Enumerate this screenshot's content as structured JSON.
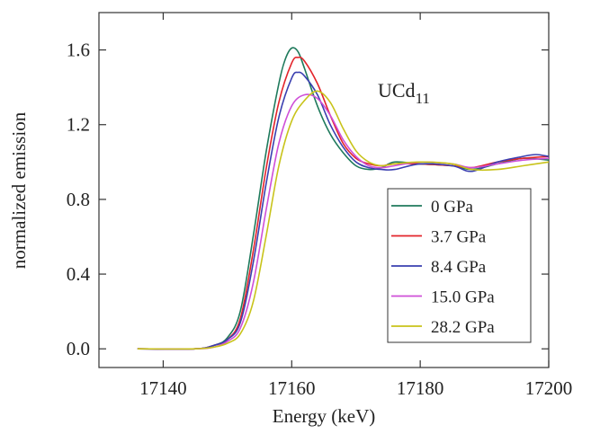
{
  "chart_data": {
    "type": "line",
    "title": "",
    "xlabel": "Energy (keV)",
    "ylabel": "normalized emission",
    "xlim": [
      17130,
      17200
    ],
    "ylim": [
      -0.1,
      1.8
    ],
    "xticks": [
      17140,
      17160,
      17180,
      17200
    ],
    "yticks": [
      0.0,
      0.4,
      0.8,
      1.2,
      1.6
    ],
    "xtick_labels": [
      "17140",
      "17160",
      "17180",
      "17200"
    ],
    "ytick_labels": [
      "0.0",
      "0.4",
      "0.8",
      "1.2",
      "1.6"
    ],
    "grid": false,
    "legend_position": "lower-right",
    "annotation": {
      "base": "UCd",
      "subscript": "11"
    },
    "series": [
      {
        "name": "0 GPa",
        "color": "#1f7a5c",
        "x": [
          17136,
          17145,
          17148,
          17150,
          17152,
          17154,
          17156,
          17158,
          17159,
          17160,
          17161,
          17162,
          17164,
          17166,
          17168,
          17170,
          17172,
          17174,
          17176,
          17180,
          17185,
          17188,
          17192,
          17196,
          17200
        ],
        "y": [
          0.0,
          0.0,
          0.02,
          0.06,
          0.2,
          0.6,
          1.05,
          1.42,
          1.55,
          1.61,
          1.59,
          1.5,
          1.3,
          1.15,
          1.05,
          0.98,
          0.96,
          0.97,
          1.0,
          0.99,
          0.98,
          0.96,
          0.99,
          1.02,
          1.01
        ]
      },
      {
        "name": "3.7 GPa",
        "color": "#e3242b",
        "x": [
          17136,
          17145,
          17148,
          17150,
          17152,
          17154,
          17156,
          17158,
          17160,
          17161,
          17162,
          17164,
          17166,
          17168,
          17170,
          17172,
          17174,
          17176,
          17180,
          17185,
          17188,
          17192,
          17196,
          17200
        ],
        "y": [
          0.0,
          0.0,
          0.02,
          0.05,
          0.16,
          0.52,
          0.96,
          1.32,
          1.53,
          1.56,
          1.54,
          1.42,
          1.25,
          1.1,
          1.02,
          0.99,
          0.98,
          0.99,
          0.99,
          0.98,
          0.97,
          1.0,
          1.02,
          1.03
        ]
      },
      {
        "name": "8.4 GPa",
        "color": "#3a3fb0",
        "x": [
          17136,
          17145,
          17148,
          17150,
          17152,
          17154,
          17156,
          17158,
          17160,
          17161,
          17162,
          17164,
          17166,
          17168,
          17170,
          17172,
          17174,
          17176,
          17180,
          17185,
          17188,
          17192,
          17196,
          17198,
          17200
        ],
        "y": [
          0.0,
          0.0,
          0.02,
          0.05,
          0.14,
          0.46,
          0.88,
          1.24,
          1.45,
          1.48,
          1.46,
          1.36,
          1.2,
          1.08,
          1.0,
          0.97,
          0.96,
          0.96,
          0.99,
          0.98,
          0.95,
          1.0,
          1.03,
          1.04,
          1.03
        ]
      },
      {
        "name": "15.0 GPa",
        "color": "#cf4fd8",
        "x": [
          17136,
          17145,
          17148,
          17150,
          17152,
          17154,
          17156,
          17158,
          17160,
          17162,
          17164,
          17166,
          17168,
          17170,
          17172,
          17174,
          17176,
          17180,
          17185,
          17188,
          17192,
          17196,
          17200
        ],
        "y": [
          0.0,
          0.0,
          0.01,
          0.04,
          0.11,
          0.35,
          0.74,
          1.1,
          1.3,
          1.36,
          1.34,
          1.25,
          1.12,
          1.03,
          0.98,
          0.97,
          0.98,
          1.0,
          0.99,
          0.97,
          0.99,
          1.01,
          1.02
        ]
      },
      {
        "name": "28.2 GPa",
        "color": "#c8c31a",
        "x": [
          17136,
          17145,
          17148,
          17150,
          17152,
          17154,
          17156,
          17158,
          17160,
          17162,
          17164,
          17166,
          17168,
          17170,
          17172,
          17174,
          17176,
          17180,
          17185,
          17188,
          17192,
          17196,
          17200
        ],
        "y": [
          0.0,
          0.0,
          0.01,
          0.03,
          0.08,
          0.25,
          0.6,
          0.98,
          1.22,
          1.33,
          1.38,
          1.32,
          1.18,
          1.06,
          1.0,
          0.98,
          0.99,
          1.0,
          0.99,
          0.96,
          0.96,
          0.98,
          1.0
        ]
      }
    ]
  }
}
